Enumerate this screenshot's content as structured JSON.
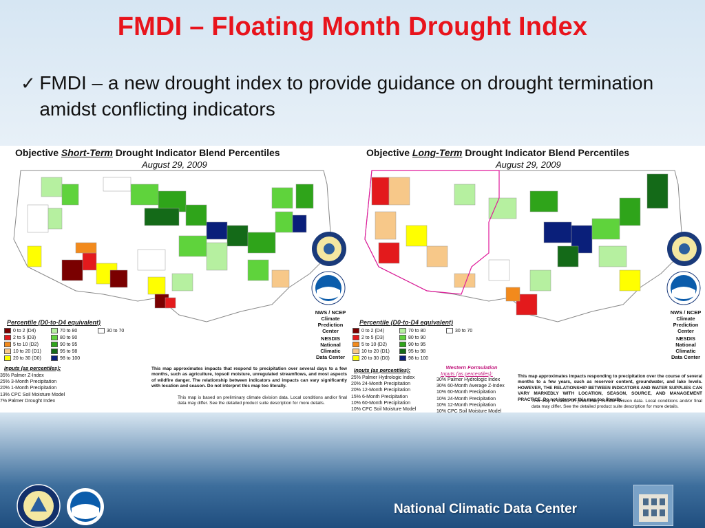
{
  "slide": {
    "title": "FMDI – Floating Month Drought Index",
    "bullet": "FMDI – a new drought index to provide guidance on drought termination amidst conflicting indicators",
    "footer": "National Climatic Data Center"
  },
  "short_map": {
    "title_pre": "Objective",
    "title_term": "Short-Term",
    "title_post": "Drought Indicator Blend Percentiles",
    "date": "August 29, 2009",
    "legend_title": "Percentile  (D0-to-D4 equivalent)",
    "legend": [
      {
        "label": "0 to 2  (D4)",
        "color": "#7a0000"
      },
      {
        "label": "2 to 5  (D3)",
        "color": "#e31a1c"
      },
      {
        "label": "5 to 10  (D2)",
        "color": "#f28a1c"
      },
      {
        "label": "10 to 20  (D1)",
        "color": "#f7c889"
      },
      {
        "label": "20 to 30  (D0)",
        "color": "#ffff00"
      },
      {
        "label": "70 to 80",
        "color": "#b6f0a0"
      },
      {
        "label": "80 to 90",
        "color": "#5fd33c"
      },
      {
        "label": "90 to 95",
        "color": "#2fa41a"
      },
      {
        "label": "95 to 98",
        "color": "#146a18"
      },
      {
        "label": "98 to 100",
        "color": "#0a1f7a"
      },
      {
        "label": "30 to 70",
        "color": "#ffffff"
      }
    ],
    "inputs_title": "Inputs (as percentiles):",
    "inputs": [
      "35%  Palmer Z-Index",
      "25%  3-Month Precipitation",
      "20%  1-Month Precipitation",
      "13%  CPC Soil Moisture Model",
      "  7%  Palmer Drought Index"
    ],
    "note_bold": "This map approximates impacts that respond to precipitation over several days to a few months, such as agriculture, topsoil moisture, unregulated streamflows, and most aspects of wildfire danger. The relationship between indicators and impacts can vary significantly with location and season. Do not interpret this map too literally.",
    "note_small": "This map is based on preliminary climate division data. Local conditions and/or final data may differ. See the detailed product suite description for more details.",
    "agency_1": "NWS / NCEP\nClimate\nPrediction\nCenter",
    "agency_2": "NESDIS\nNational\nClimatic\nData Center"
  },
  "long_map": {
    "title_pre": "Objective",
    "title_term": "Long-Term",
    "title_post": "Drought Indicator Blend Percentiles",
    "date": "August 29, 2009",
    "legend_title": "Percentile  (D0-to-D4 equivalent)",
    "legend": [
      {
        "label": "0 to 2  (D4)",
        "color": "#7a0000"
      },
      {
        "label": "2 to 5  (D3)",
        "color": "#e31a1c"
      },
      {
        "label": "5 to 10  (D2)",
        "color": "#f28a1c"
      },
      {
        "label": "10 to 20  (D1)",
        "color": "#f7c889"
      },
      {
        "label": "20 to 30  (D0)",
        "color": "#ffff00"
      },
      {
        "label": "70 to 80",
        "color": "#b6f0a0"
      },
      {
        "label": "80 to 90",
        "color": "#5fd33c"
      },
      {
        "label": "90 to 95",
        "color": "#2fa41a"
      },
      {
        "label": "95 to 98",
        "color": "#146a18"
      },
      {
        "label": "98 to 100",
        "color": "#0a1f7a"
      },
      {
        "label": "30 to 70",
        "color": "#ffffff"
      }
    ],
    "inputs_title": "Inputs (as percentiles):",
    "inputs": [
      "25%  Palmer Hydrologic Index",
      "20%  24-Month Precipitation",
      "20%  12-Month Precipitation",
      "15%  6-Month Precipitation",
      "10%  60-Month Precipitation",
      "10%  CPC Soil Moisture Model"
    ],
    "western_title": "Western Formulation",
    "western_sub": "Inputs (as percentiles):",
    "western_inputs": [
      "30% Palmer Hydrologic Index",
      "30% 60-Month Average Z-Index",
      "10% 60-Month Precipitation",
      "10% 24-Month Precipitation",
      "10% 12-Month Precipitation",
      "10% CPC Soil Moisture Model"
    ],
    "note_bold": "This map approximates impacts responding to precipitation over the course of several months to a few years, such as reservoir content, groundwater, and lake levels. HOWEVER, THE RELATIONSHIP BETWEEN INDICATORS AND WATER SUPPLIES CAN VARY MARKEDLY WITH LOCATION, SEASON, SOURCE, AND MANAGEMENT PRACTICE. Do not interpret this map too literally.",
    "note_small": "This map is based on preliminary climate division data. Local conditions and/or final data may differ. See the detailed product suite description for more details.",
    "agency_1": "NWS / NCEP\nClimate\nPrediction\nCenter",
    "agency_2": "NESDIS\nNational\nClimatic\nData Center"
  },
  "colors": {
    "title_red": "#e8141c",
    "footer_blue": "#1f4d7e"
  }
}
